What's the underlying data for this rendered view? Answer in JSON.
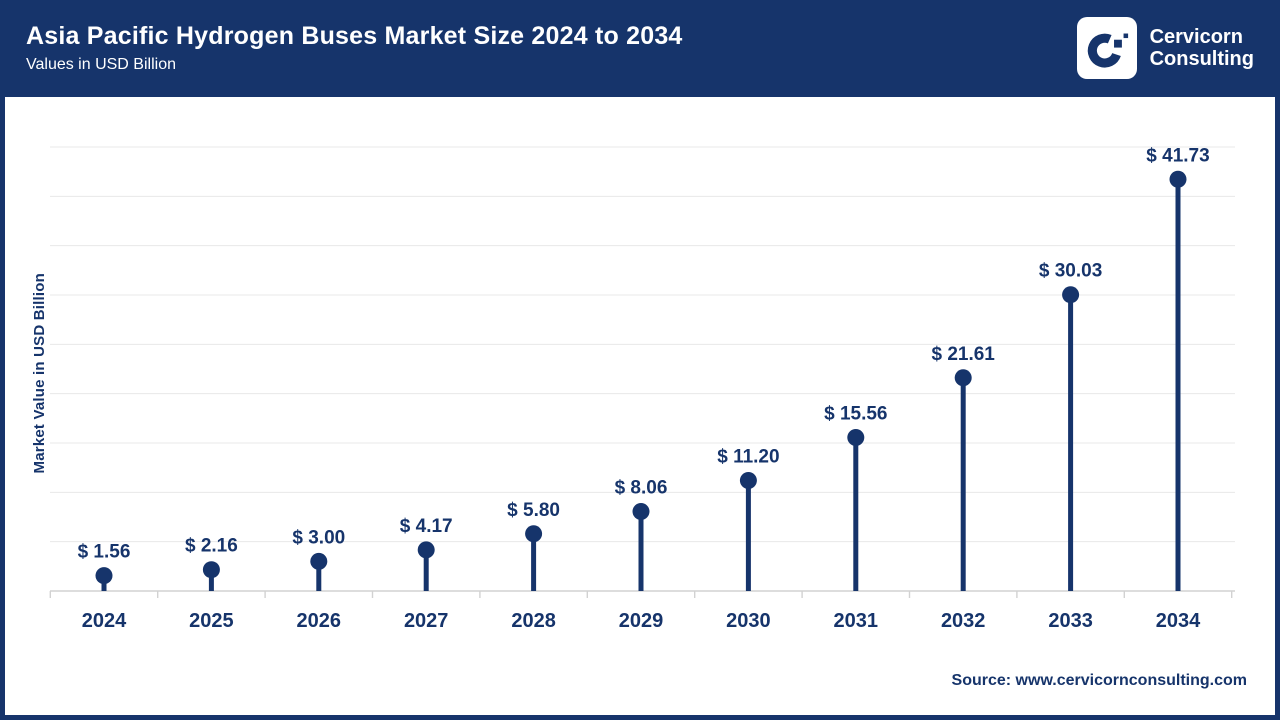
{
  "header": {
    "title": "Asia Pacific Hydrogen Buses Market Size 2024 to 2034",
    "subtitle": "Values in USD Billion",
    "logo": {
      "line1": "Cervicorn",
      "line2": "Consulting"
    }
  },
  "chart_data": {
    "type": "scatter",
    "variant": "lollipop",
    "title": "Asia Pacific Hydrogen Buses Market Size 2024 to 2034",
    "xlabel": "",
    "ylabel": "Market Value in USD Billion",
    "categories": [
      "2024",
      "2025",
      "2026",
      "2027",
      "2028",
      "2029",
      "2030",
      "2031",
      "2032",
      "2033",
      "2034"
    ],
    "values": [
      1.56,
      2.16,
      3.0,
      4.17,
      5.8,
      8.06,
      11.2,
      15.56,
      21.61,
      30.03,
      41.73
    ],
    "value_labels": [
      "$ 1.56",
      "$ 2.16",
      "$ 3.00",
      "$ 4.17",
      "$ 5.80",
      "$ 8.06",
      "$ 11.20",
      "$ 15.56",
      "$ 21.61",
      "$ 30.03",
      "$ 41.73"
    ],
    "ylim": [
      0,
      45
    ],
    "gridline_step": 5,
    "grid": "on",
    "legend": "none",
    "y_tick_labels_visible": false
  },
  "footer": {
    "source": "Source: www.cervicornconsulting.com"
  },
  "colors": {
    "navy": "#16346b",
    "grid": "#e8e8e8",
    "axis": "#d2d2d2",
    "background": "#ffffff",
    "header_text": "#ffffff"
  }
}
